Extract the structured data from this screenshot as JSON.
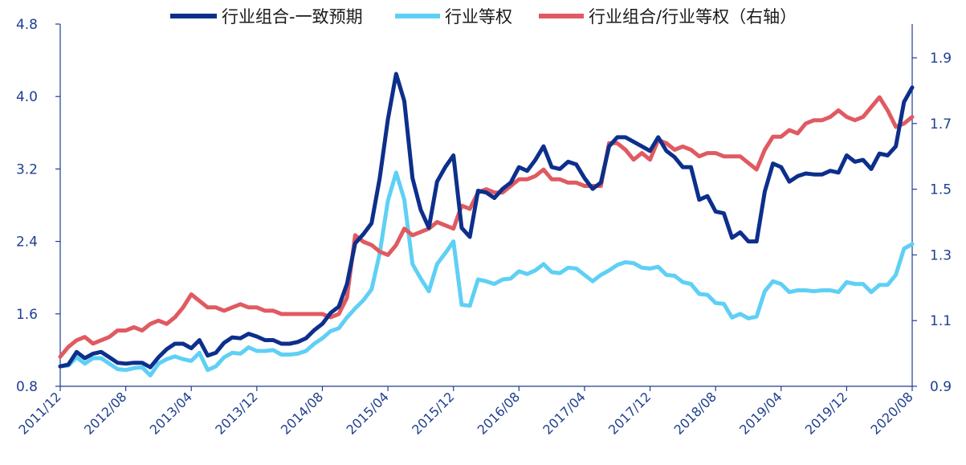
{
  "chart_data": {
    "type": "line",
    "legend": [
      {
        "name": "行业组合-一致预期",
        "color": "#0d2f8c"
      },
      {
        "name": "行业等权",
        "color": "#5fd0f5"
      },
      {
        "name": "行业组合/行业等权（右轴）",
        "color": "#e05a61"
      }
    ],
    "legend_placement": "top",
    "x_tick_labels": [
      "2011/12",
      "2012/08",
      "2013/04",
      "2013/12",
      "2014/08",
      "2015/04",
      "2015/12",
      "2016/08",
      "2017/04",
      "2017/12",
      "2018/08",
      "2019/04",
      "2019/12",
      "2020/08"
    ],
    "y_left": {
      "ticks": [
        "0.8",
        "1.6",
        "2.4",
        "3.2",
        "4.0",
        "4.8"
      ],
      "range": [
        0.8,
        4.8
      ]
    },
    "y_right": {
      "ticks": [
        "0.9",
        "1.1",
        "1.3",
        "1.5",
        "1.7",
        "1.9"
      ],
      "range": [
        0.9,
        2.0
      ]
    },
    "grid": false,
    "series": [
      {
        "name": "行业组合-一致预期",
        "axis": "left",
        "color": "#0d2f8c",
        "points": [
          [
            0,
            1.02
          ],
          [
            1,
            1.04
          ],
          [
            2,
            1.18
          ],
          [
            3,
            1.11
          ],
          [
            4,
            1.16
          ],
          [
            5,
            1.18
          ],
          [
            6,
            1.12
          ],
          [
            7,
            1.06
          ],
          [
            8,
            1.05
          ],
          [
            9,
            1.06
          ],
          [
            10,
            1.06
          ],
          [
            11,
            1.01
          ],
          [
            12,
            1.12
          ],
          [
            13,
            1.21
          ],
          [
            14,
            1.27
          ],
          [
            15,
            1.27
          ],
          [
            16,
            1.22
          ],
          [
            17,
            1.31
          ],
          [
            18,
            1.14
          ],
          [
            19,
            1.17
          ],
          [
            20,
            1.28
          ],
          [
            21,
            1.34
          ],
          [
            22,
            1.33
          ],
          [
            23,
            1.38
          ],
          [
            24,
            1.35
          ],
          [
            25,
            1.31
          ],
          [
            26,
            1.31
          ],
          [
            27,
            1.27
          ],
          [
            28,
            1.27
          ],
          [
            29,
            1.29
          ],
          [
            30,
            1.33
          ],
          [
            31,
            1.42
          ],
          [
            32,
            1.49
          ],
          [
            33,
            1.61
          ],
          [
            34,
            1.68
          ],
          [
            35,
            1.93
          ],
          [
            36,
            2.38
          ],
          [
            37,
            2.48
          ],
          [
            38,
            2.6
          ],
          [
            39,
            3.1
          ],
          [
            40,
            3.75
          ],
          [
            41,
            4.25
          ],
          [
            42,
            3.95
          ],
          [
            43,
            3.1
          ],
          [
            44,
            2.75
          ],
          [
            45,
            2.55
          ],
          [
            46,
            3.06
          ],
          [
            47,
            3.22
          ],
          [
            48,
            3.35
          ],
          [
            49,
            2.55
          ],
          [
            50,
            2.45
          ],
          [
            51,
            2.96
          ],
          [
            52,
            2.94
          ],
          [
            53,
            2.88
          ],
          [
            54,
            2.98
          ],
          [
            55,
            3.05
          ],
          [
            56,
            3.22
          ],
          [
            57,
            3.18
          ],
          [
            58,
            3.3
          ],
          [
            59,
            3.45
          ],
          [
            60,
            3.22
          ],
          [
            61,
            3.2
          ],
          [
            62,
            3.28
          ],
          [
            63,
            3.25
          ],
          [
            64,
            3.1
          ],
          [
            65,
            2.98
          ],
          [
            66,
            3.05
          ],
          [
            67,
            3.45
          ],
          [
            68,
            3.55
          ],
          [
            69,
            3.55
          ],
          [
            70,
            3.5
          ],
          [
            71,
            3.45
          ],
          [
            72,
            3.4
          ],
          [
            73,
            3.55
          ],
          [
            74,
            3.4
          ],
          [
            75,
            3.33
          ],
          [
            76,
            3.22
          ],
          [
            77,
            3.22
          ],
          [
            78,
            2.86
          ],
          [
            79,
            2.9
          ],
          [
            80,
            2.73
          ],
          [
            81,
            2.71
          ],
          [
            82,
            2.44
          ],
          [
            83,
            2.5
          ],
          [
            84,
            2.4
          ],
          [
            85,
            2.4
          ],
          [
            86,
            2.95
          ],
          [
            87,
            3.26
          ],
          [
            88,
            3.22
          ],
          [
            89,
            3.06
          ],
          [
            90,
            3.12
          ],
          [
            91,
            3.15
          ],
          [
            92,
            3.14
          ],
          [
            93,
            3.14
          ],
          [
            94,
            3.18
          ],
          [
            95,
            3.16
          ],
          [
            96,
            3.35
          ],
          [
            97,
            3.28
          ],
          [
            98,
            3.3
          ],
          [
            99,
            3.2
          ],
          [
            100,
            3.37
          ],
          [
            101,
            3.35
          ],
          [
            102,
            3.45
          ],
          [
            103,
            3.94
          ],
          [
            104,
            4.1
          ]
        ]
      },
      {
        "name": "行业等权",
        "axis": "left",
        "color": "#5fd0f5",
        "points": [
          [
            0,
            1.02
          ],
          [
            1,
            1.03
          ],
          [
            2,
            1.12
          ],
          [
            3,
            1.05
          ],
          [
            4,
            1.11
          ],
          [
            5,
            1.11
          ],
          [
            6,
            1.05
          ],
          [
            7,
            0.99
          ],
          [
            8,
            0.98
          ],
          [
            9,
            1.0
          ],
          [
            10,
            1.01
          ],
          [
            11,
            0.92
          ],
          [
            12,
            1.05
          ],
          [
            13,
            1.1
          ],
          [
            14,
            1.13
          ],
          [
            15,
            1.1
          ],
          [
            16,
            1.08
          ],
          [
            17,
            1.17
          ],
          [
            18,
            0.98
          ],
          [
            19,
            1.02
          ],
          [
            20,
            1.12
          ],
          [
            21,
            1.17
          ],
          [
            22,
            1.16
          ],
          [
            23,
            1.23
          ],
          [
            24,
            1.19
          ],
          [
            25,
            1.19
          ],
          [
            26,
            1.2
          ],
          [
            27,
            1.15
          ],
          [
            28,
            1.15
          ],
          [
            29,
            1.16
          ],
          [
            30,
            1.19
          ],
          [
            31,
            1.27
          ],
          [
            32,
            1.33
          ],
          [
            33,
            1.41
          ],
          [
            34,
            1.44
          ],
          [
            35,
            1.56
          ],
          [
            36,
            1.66
          ],
          [
            37,
            1.75
          ],
          [
            38,
            1.87
          ],
          [
            39,
            2.27
          ],
          [
            40,
            2.85
          ],
          [
            41,
            3.16
          ],
          [
            42,
            2.86
          ],
          [
            43,
            2.15
          ],
          [
            44,
            1.99
          ],
          [
            45,
            1.85
          ],
          [
            46,
            2.15
          ],
          [
            47,
            2.27
          ],
          [
            48,
            2.4
          ],
          [
            49,
            1.7
          ],
          [
            50,
            1.69
          ],
          [
            51,
            1.98
          ],
          [
            52,
            1.96
          ],
          [
            53,
            1.93
          ],
          [
            54,
            1.98
          ],
          [
            55,
            1.99
          ],
          [
            56,
            2.07
          ],
          [
            57,
            2.04
          ],
          [
            58,
            2.08
          ],
          [
            59,
            2.15
          ],
          [
            60,
            2.06
          ],
          [
            61,
            2.05
          ],
          [
            62,
            2.11
          ],
          [
            63,
            2.1
          ],
          [
            64,
            2.03
          ],
          [
            65,
            1.96
          ],
          [
            66,
            2.03
          ],
          [
            67,
            2.08
          ],
          [
            68,
            2.14
          ],
          [
            69,
            2.17
          ],
          [
            70,
            2.16
          ],
          [
            71,
            2.11
          ],
          [
            72,
            2.1
          ],
          [
            73,
            2.12
          ],
          [
            74,
            2.03
          ],
          [
            75,
            2.02
          ],
          [
            76,
            1.95
          ],
          [
            77,
            1.93
          ],
          [
            78,
            1.82
          ],
          [
            79,
            1.81
          ],
          [
            80,
            1.72
          ],
          [
            81,
            1.71
          ],
          [
            82,
            1.56
          ],
          [
            83,
            1.6
          ],
          [
            84,
            1.55
          ],
          [
            85,
            1.57
          ],
          [
            86,
            1.85
          ],
          [
            87,
            1.96
          ],
          [
            88,
            1.93
          ],
          [
            89,
            1.84
          ],
          [
            90,
            1.86
          ],
          [
            91,
            1.86
          ],
          [
            92,
            1.85
          ],
          [
            93,
            1.86
          ],
          [
            94,
            1.86
          ],
          [
            95,
            1.84
          ],
          [
            96,
            1.95
          ],
          [
            97,
            1.93
          ],
          [
            98,
            1.93
          ],
          [
            99,
            1.84
          ],
          [
            100,
            1.92
          ],
          [
            101,
            1.92
          ],
          [
            102,
            2.03
          ],
          [
            103,
            2.32
          ],
          [
            104,
            2.37
          ]
        ]
      },
      {
        "name": "行业组合/行业等权（右轴）",
        "axis": "right",
        "color": "#e05a61",
        "points": [
          [
            0,
            0.99
          ],
          [
            1,
            1.02
          ],
          [
            2,
            1.04
          ],
          [
            3,
            1.05
          ],
          [
            4,
            1.03
          ],
          [
            5,
            1.04
          ],
          [
            6,
            1.05
          ],
          [
            7,
            1.07
          ],
          [
            8,
            1.07
          ],
          [
            9,
            1.08
          ],
          [
            10,
            1.07
          ],
          [
            11,
            1.09
          ],
          [
            12,
            1.1
          ],
          [
            13,
            1.09
          ],
          [
            14,
            1.11
          ],
          [
            15,
            1.14
          ],
          [
            16,
            1.18
          ],
          [
            17,
            1.16
          ],
          [
            18,
            1.14
          ],
          [
            19,
            1.14
          ],
          [
            20,
            1.13
          ],
          [
            21,
            1.14
          ],
          [
            22,
            1.15
          ],
          [
            23,
            1.14
          ],
          [
            24,
            1.14
          ],
          [
            25,
            1.13
          ],
          [
            26,
            1.13
          ],
          [
            27,
            1.12
          ],
          [
            28,
            1.12
          ],
          [
            29,
            1.12
          ],
          [
            30,
            1.12
          ],
          [
            31,
            1.12
          ],
          [
            32,
            1.12
          ],
          [
            33,
            1.11
          ],
          [
            34,
            1.12
          ],
          [
            35,
            1.17
          ],
          [
            36,
            1.36
          ],
          [
            37,
            1.34
          ],
          [
            38,
            1.33
          ],
          [
            39,
            1.31
          ],
          [
            40,
            1.3
          ],
          [
            41,
            1.33
          ],
          [
            42,
            1.38
          ],
          [
            43,
            1.36
          ],
          [
            44,
            1.37
          ],
          [
            45,
            1.38
          ],
          [
            46,
            1.4
          ],
          [
            47,
            1.39
          ],
          [
            48,
            1.38
          ],
          [
            49,
            1.45
          ],
          [
            50,
            1.44
          ],
          [
            51,
            1.49
          ],
          [
            52,
            1.5
          ],
          [
            53,
            1.49
          ],
          [
            54,
            1.49
          ],
          [
            55,
            1.51
          ],
          [
            56,
            1.53
          ],
          [
            57,
            1.53
          ],
          [
            58,
            1.54
          ],
          [
            59,
            1.56
          ],
          [
            60,
            1.53
          ],
          [
            61,
            1.53
          ],
          [
            62,
            1.52
          ],
          [
            63,
            1.52
          ],
          [
            64,
            1.51
          ],
          [
            65,
            1.51
          ],
          [
            66,
            1.51
          ],
          [
            67,
            1.64
          ],
          [
            68,
            1.64
          ],
          [
            69,
            1.62
          ],
          [
            70,
            1.59
          ],
          [
            71,
            1.61
          ],
          [
            72,
            1.59
          ],
          [
            73,
            1.65
          ],
          [
            74,
            1.64
          ],
          [
            75,
            1.62
          ],
          [
            76,
            1.63
          ],
          [
            77,
            1.62
          ],
          [
            78,
            1.6
          ],
          [
            79,
            1.61
          ],
          [
            80,
            1.61
          ],
          [
            81,
            1.6
          ],
          [
            82,
            1.6
          ],
          [
            83,
            1.6
          ],
          [
            84,
            1.58
          ],
          [
            85,
            1.56
          ],
          [
            86,
            1.62
          ],
          [
            87,
            1.66
          ],
          [
            88,
            1.66
          ],
          [
            89,
            1.68
          ],
          [
            90,
            1.67
          ],
          [
            91,
            1.7
          ],
          [
            92,
            1.71
          ],
          [
            93,
            1.71
          ],
          [
            94,
            1.72
          ],
          [
            95,
            1.74
          ],
          [
            96,
            1.72
          ],
          [
            97,
            1.71
          ],
          [
            98,
            1.72
          ],
          [
            99,
            1.75
          ],
          [
            100,
            1.78
          ],
          [
            101,
            1.74
          ],
          [
            102,
            1.69
          ],
          [
            103,
            1.7
          ],
          [
            104,
            1.72
          ]
        ]
      }
    ]
  }
}
